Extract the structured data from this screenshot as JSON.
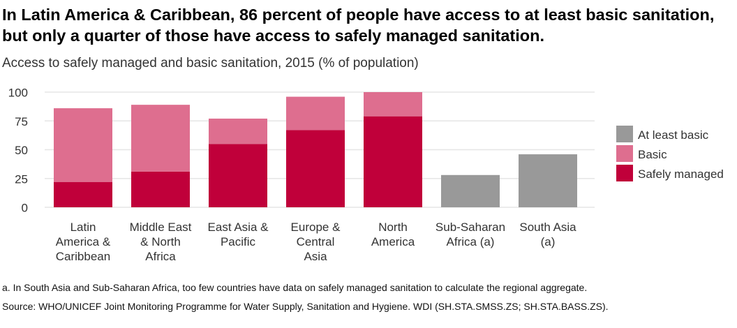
{
  "title": "In Latin America & Caribbean, 86 percent of people have access to at least basic sanitation, but only a quarter of those have access to safely managed sanitation.",
  "subtitle": "Access to safely managed and basic sanitation, 2015 (% of population)",
  "footnote": "a. In South Asia and Sub-Saharan Africa, too few countries have data on safely managed sanitation to calculate the regional aggregate.",
  "source": "Source: WHO/UNICEF Joint Monitoring Programme for Water Supply, Sanitation and Hygiene. WDI (SH.STA.SMSS.ZS; SH.STA.BASS.ZS).",
  "colors": {
    "safely_managed": "#c0003a",
    "basic": "#de6e8f",
    "at_least_basic": "#999999",
    "grid": "#e6e6e6",
    "axis_text": "#333333"
  },
  "chart_data": {
    "type": "bar",
    "stacked": true,
    "categories": [
      [
        "Latin",
        "America &",
        "Caribbean"
      ],
      [
        "Middle East",
        "& North",
        "Africa"
      ],
      [
        "East Asia &",
        "Pacific"
      ],
      [
        "Europe &",
        "Central",
        "Asia"
      ],
      [
        "North",
        "America"
      ],
      [
        "Sub-Saharan",
        "Africa (a)"
      ],
      [
        "South Asia",
        "(a)"
      ]
    ],
    "series": [
      {
        "name": "Safely managed",
        "values": [
          22,
          31,
          55,
          67,
          79,
          null,
          null
        ]
      },
      {
        "name": "Basic",
        "values": [
          64,
          58,
          22,
          29,
          21,
          null,
          null
        ]
      },
      {
        "name": "At least basic",
        "values": [
          null,
          null,
          null,
          null,
          null,
          28,
          46
        ]
      }
    ],
    "legend": {
      "position": "right",
      "entries": [
        "At least basic",
        "Basic",
        "Safely managed"
      ]
    },
    "yticks": [
      0,
      25,
      50,
      75,
      100
    ],
    "ylim": [
      0,
      100
    ],
    "grid": true
  }
}
